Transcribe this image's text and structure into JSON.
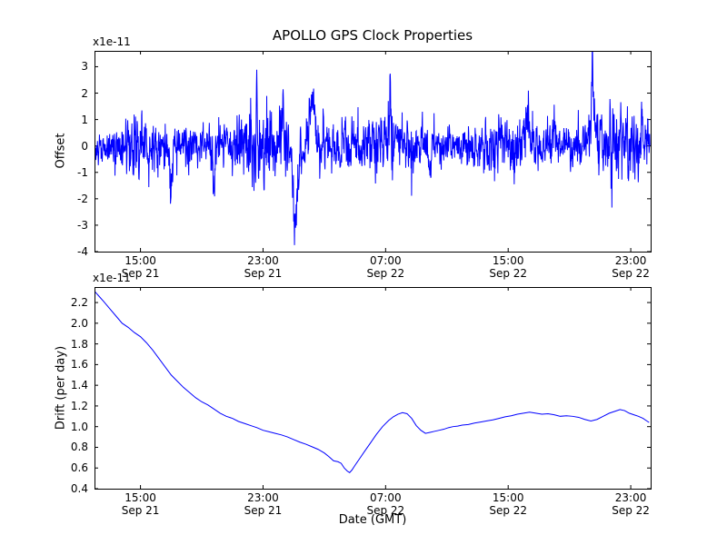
{
  "figure": {
    "title": "APOLLO GPS Clock Properties",
    "xlabel": "Date (GMT)",
    "background": "#ffffff",
    "line_color": "#0000ff",
    "axis_color": "#000000"
  },
  "chart_data": [
    {
      "type": "line",
      "id": "offset",
      "title": "APOLLO GPS Clock Properties",
      "ylabel": "Offset",
      "offset_text": "x1e-11",
      "ylim": [
        -4,
        3.6
      ],
      "yticks": [
        {
          "label": "3",
          "value": 3
        },
        {
          "label": "2",
          "value": 2
        },
        {
          "label": "1",
          "value": 1
        },
        {
          "label": "0",
          "value": 0
        },
        {
          "label": "-1",
          "value": -1
        },
        {
          "label": "-2",
          "value": -2
        },
        {
          "label": "-3",
          "value": -3
        },
        {
          "label": "-4",
          "value": -4
        }
      ],
      "x_unit": "hours since Sep 21 00:00 GMT",
      "xlim_hours": [
        12,
        48.3
      ],
      "xticks": [
        {
          "time": "15:00",
          "date": "Sep 21",
          "hour": 15
        },
        {
          "time": "23:00",
          "date": "Sep 21",
          "hour": 23
        },
        {
          "time": "07:00",
          "date": "Sep 22",
          "hour": 31
        },
        {
          "time": "15:00",
          "date": "Sep 22",
          "hour": 39
        },
        {
          "time": "23:00",
          "date": "Sep 22",
          "hour": 47
        }
      ],
      "line_color": "#0000ff",
      "grid": false,
      "legend": "none",
      "series_spec": {
        "kind": "stochastic-noise",
        "description": "dense noisy clock-offset trace, mean ~0, typical band +/-1.5e-11",
        "t_start": 12.05,
        "t_end": 48.25,
        "n_points": 2000,
        "seed": 20040921,
        "ar_coeff": 0.3,
        "noise_scale": 0.48,
        "amp_mod": [
          0.25,
          0.8,
          2.0,
          0.12,
          0.27,
          1.0
        ],
        "spikes": [
          {
            "t": 17.0,
            "a": -1.5,
            "w": 0.15
          },
          {
            "t": 19.8,
            "a": -1.2,
            "w": 0.12
          },
          {
            "t": 22.6,
            "a": 2.3,
            "w": 0.05
          },
          {
            "t": 24.3,
            "a": 1.9,
            "w": 0.07
          },
          {
            "t": 25.1,
            "a": -2.9,
            "w": 0.22
          },
          {
            "t": 26.2,
            "a": 1.5,
            "w": 0.25
          },
          {
            "t": 31.3,
            "a": 1.8,
            "w": 0.1
          },
          {
            "t": 33.9,
            "a": -1.1,
            "w": 0.12
          },
          {
            "t": 40.3,
            "a": 1.2,
            "w": 0.15
          },
          {
            "t": 42.0,
            "a": 1.2,
            "w": 0.12
          },
          {
            "t": 44.5,
            "a": 3.1,
            "w": 0.04
          },
          {
            "t": 44.55,
            "a": 1.2,
            "w": 0.25
          },
          {
            "t": 47.8,
            "a": 0.9,
            "w": 0.1
          }
        ]
      }
    },
    {
      "type": "line",
      "id": "drift",
      "ylabel": "Drift (per day)",
      "xlabel": "Date (GMT)",
      "offset_text": "x1e-11",
      "ylim": [
        0.4,
        2.35
      ],
      "yticks": [
        {
          "label": "2.2",
          "value": 2.2
        },
        {
          "label": "2.0",
          "value": 2.0
        },
        {
          "label": "1.8",
          "value": 1.8
        },
        {
          "label": "1.6",
          "value": 1.6
        },
        {
          "label": "1.4",
          "value": 1.4
        },
        {
          "label": "1.2",
          "value": 1.2
        },
        {
          "label": "1.0",
          "value": 1.0
        },
        {
          "label": "0.8",
          "value": 0.8
        },
        {
          "label": "0.6",
          "value": 0.6
        },
        {
          "label": "0.4",
          "value": 0.4
        }
      ],
      "x_unit": "hours since Sep 21 00:00 GMT",
      "xlim_hours": [
        12,
        48.3
      ],
      "xticks": [
        {
          "time": "15:00",
          "date": "Sep 21",
          "hour": 15
        },
        {
          "time": "23:00",
          "date": "Sep 21",
          "hour": 23
        },
        {
          "time": "07:00",
          "date": "Sep 22",
          "hour": 31
        },
        {
          "time": "15:00",
          "date": "Sep 22",
          "hour": 39
        },
        {
          "time": "23:00",
          "date": "Sep 22",
          "hour": 47
        }
      ],
      "line_color": "#0000ff",
      "grid": false,
      "legend": "none",
      "points": [
        [
          12.0,
          2.31
        ],
        [
          12.3,
          2.26
        ],
        [
          12.6,
          2.21
        ],
        [
          13.0,
          2.14
        ],
        [
          13.4,
          2.07
        ],
        [
          13.8,
          2.0
        ],
        [
          14.2,
          1.96
        ],
        [
          14.6,
          1.91
        ],
        [
          15.0,
          1.87
        ],
        [
          15.4,
          1.81
        ],
        [
          15.8,
          1.74
        ],
        [
          16.2,
          1.66
        ],
        [
          16.6,
          1.58
        ],
        [
          17.0,
          1.5
        ],
        [
          17.4,
          1.44
        ],
        [
          17.8,
          1.38
        ],
        [
          18.2,
          1.33
        ],
        [
          18.6,
          1.28
        ],
        [
          19.0,
          1.24
        ],
        [
          19.4,
          1.21
        ],
        [
          19.8,
          1.17
        ],
        [
          20.2,
          1.13
        ],
        [
          20.6,
          1.1
        ],
        [
          21.0,
          1.08
        ],
        [
          21.4,
          1.05
        ],
        [
          21.8,
          1.03
        ],
        [
          22.2,
          1.01
        ],
        [
          22.6,
          0.99
        ],
        [
          23.0,
          0.965
        ],
        [
          23.4,
          0.95
        ],
        [
          23.8,
          0.935
        ],
        [
          24.2,
          0.92
        ],
        [
          24.6,
          0.9
        ],
        [
          25.0,
          0.875
        ],
        [
          25.4,
          0.85
        ],
        [
          25.8,
          0.83
        ],
        [
          26.2,
          0.805
        ],
        [
          26.6,
          0.78
        ],
        [
          27.0,
          0.745
        ],
        [
          27.3,
          0.71
        ],
        [
          27.6,
          0.67
        ],
        [
          27.9,
          0.66
        ],
        [
          28.1,
          0.645
        ],
        [
          28.3,
          0.6
        ],
        [
          28.5,
          0.57
        ],
        [
          28.65,
          0.555
        ],
        [
          28.8,
          0.58
        ],
        [
          29.0,
          0.625
        ],
        [
          29.3,
          0.69
        ],
        [
          29.6,
          0.755
        ],
        [
          30.0,
          0.84
        ],
        [
          30.4,
          0.925
        ],
        [
          30.8,
          1.0
        ],
        [
          31.2,
          1.06
        ],
        [
          31.5,
          1.095
        ],
        [
          31.8,
          1.12
        ],
        [
          32.1,
          1.135
        ],
        [
          32.4,
          1.125
        ],
        [
          32.7,
          1.08
        ],
        [
          33.0,
          1.01
        ],
        [
          33.3,
          0.965
        ],
        [
          33.6,
          0.935
        ],
        [
          33.9,
          0.945
        ],
        [
          34.2,
          0.955
        ],
        [
          34.5,
          0.965
        ],
        [
          34.8,
          0.975
        ],
        [
          35.1,
          0.99
        ],
        [
          35.4,
          1.0
        ],
        [
          35.7,
          1.005
        ],
        [
          36.0,
          1.015
        ],
        [
          36.4,
          1.02
        ],
        [
          36.8,
          1.035
        ],
        [
          37.2,
          1.045
        ],
        [
          37.6,
          1.055
        ],
        [
          38.0,
          1.065
        ],
        [
          38.4,
          1.08
        ],
        [
          38.8,
          1.095
        ],
        [
          39.2,
          1.105
        ],
        [
          39.6,
          1.12
        ],
        [
          40.0,
          1.13
        ],
        [
          40.4,
          1.14
        ],
        [
          40.8,
          1.13
        ],
        [
          41.2,
          1.12
        ],
        [
          41.6,
          1.125
        ],
        [
          42.0,
          1.115
        ],
        [
          42.4,
          1.1
        ],
        [
          42.8,
          1.105
        ],
        [
          43.2,
          1.1
        ],
        [
          43.6,
          1.09
        ],
        [
          44.0,
          1.07
        ],
        [
          44.4,
          1.055
        ],
        [
          44.8,
          1.07
        ],
        [
          45.2,
          1.1
        ],
        [
          45.6,
          1.13
        ],
        [
          46.0,
          1.15
        ],
        [
          46.3,
          1.165
        ],
        [
          46.6,
          1.155
        ],
        [
          46.9,
          1.13
        ],
        [
          47.2,
          1.115
        ],
        [
          47.5,
          1.1
        ],
        [
          47.8,
          1.08
        ],
        [
          48.0,
          1.06
        ],
        [
          48.2,
          1.04
        ]
      ]
    }
  ]
}
